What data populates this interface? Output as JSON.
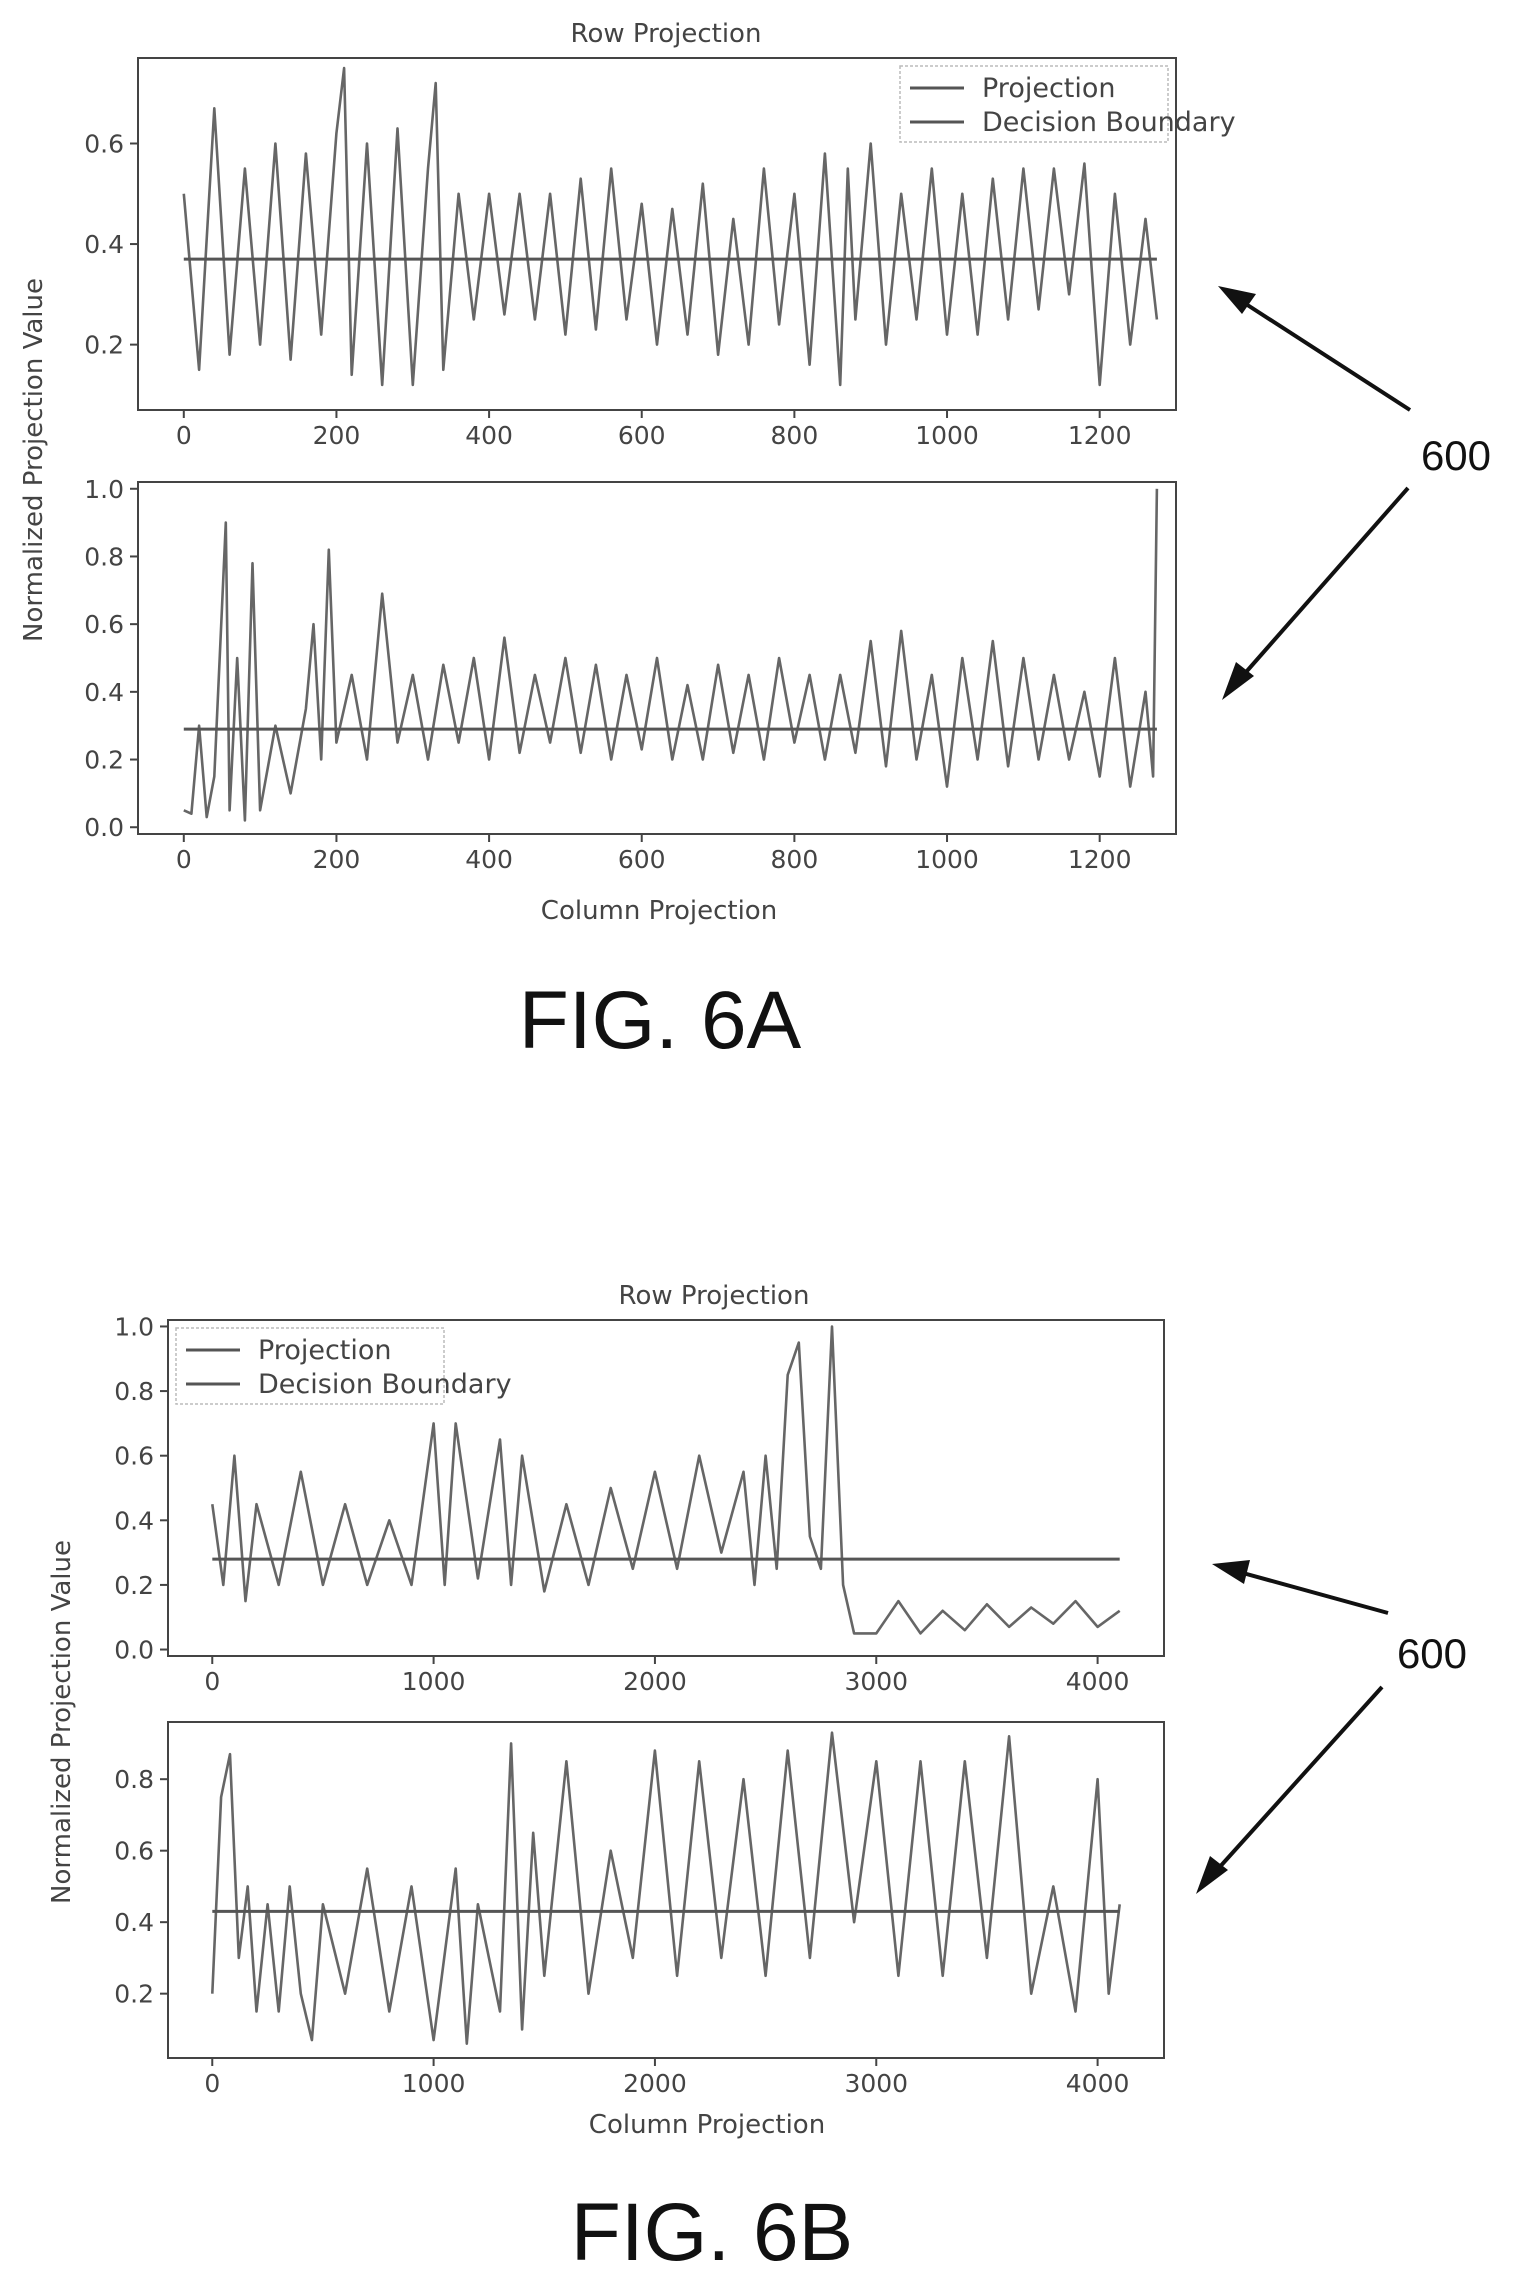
{
  "fig6a": {
    "caption": "FIG. 6A",
    "ref_label": "600",
    "ylabel": "Normalized Projection Value",
    "xlabel": "Column Projection"
  },
  "fig6b": {
    "caption": "FIG. 6B",
    "ref_label": "600",
    "ylabel": "Normalized Projection Value",
    "xlabel": "Column Projection"
  },
  "colors": {
    "line": "#666666",
    "frame": "#444444",
    "text": "#444444"
  },
  "chart_data": [
    {
      "type": "line",
      "figure": "FIG. 6A",
      "panel": "top",
      "title": "Row  Projection",
      "xlabel": "",
      "ylabel": "Normalized Projection Value",
      "xlim": [
        -60,
        1300
      ],
      "ylim": [
        0.07,
        0.77
      ],
      "xticks": [
        0,
        200,
        400,
        600,
        800,
        1000,
        1200
      ],
      "yticks": [
        0.2,
        0.4,
        0.6
      ],
      "legend": {
        "placement": "top-right",
        "entries": [
          "Projection",
          "Decision Boundary"
        ]
      },
      "grid": false,
      "series": [
        {
          "name": "Projection",
          "x": [
            0,
            20,
            40,
            60,
            80,
            100,
            120,
            140,
            160,
            180,
            200,
            210,
            220,
            240,
            260,
            280,
            300,
            320,
            330,
            340,
            360,
            380,
            400,
            420,
            440,
            460,
            480,
            500,
            520,
            540,
            560,
            580,
            600,
            620,
            640,
            660,
            680,
            700,
            720,
            740,
            760,
            780,
            800,
            820,
            840,
            860,
            870,
            880,
            900,
            920,
            940,
            960,
            980,
            1000,
            1020,
            1040,
            1060,
            1080,
            1100,
            1120,
            1140,
            1160,
            1180,
            1200,
            1220,
            1240,
            1260,
            1275
          ],
          "y": [
            0.5,
            0.15,
            0.67,
            0.18,
            0.55,
            0.2,
            0.6,
            0.17,
            0.58,
            0.22,
            0.62,
            0.75,
            0.14,
            0.6,
            0.12,
            0.63,
            0.12,
            0.55,
            0.72,
            0.15,
            0.5,
            0.25,
            0.5,
            0.26,
            0.5,
            0.25,
            0.5,
            0.22,
            0.53,
            0.23,
            0.55,
            0.25,
            0.48,
            0.2,
            0.47,
            0.22,
            0.52,
            0.18,
            0.45,
            0.2,
            0.55,
            0.24,
            0.5,
            0.16,
            0.58,
            0.12,
            0.55,
            0.25,
            0.6,
            0.2,
            0.5,
            0.25,
            0.55,
            0.22,
            0.5,
            0.22,
            0.53,
            0.25,
            0.55,
            0.27,
            0.55,
            0.3,
            0.56,
            0.12,
            0.5,
            0.2,
            0.45,
            0.25
          ]
        },
        {
          "name": "Decision Boundary",
          "x": [
            0,
            1275
          ],
          "y": [
            0.37,
            0.37
          ]
        }
      ]
    },
    {
      "type": "line",
      "figure": "FIG. 6A",
      "panel": "bottom",
      "title": "",
      "xlabel": "Column Projection",
      "ylabel": "",
      "xlim": [
        -60,
        1300
      ],
      "ylim": [
        -0.02,
        1.02
      ],
      "xticks": [
        0,
        200,
        400,
        600,
        800,
        1000,
        1200
      ],
      "yticks": [
        0.0,
        0.2,
        0.4,
        0.6,
        0.8,
        1.0
      ],
      "grid": false,
      "series": [
        {
          "name": "Projection",
          "x": [
            0,
            10,
            20,
            30,
            40,
            50,
            55,
            60,
            70,
            80,
            90,
            100,
            120,
            140,
            160,
            170,
            180,
            190,
            200,
            220,
            240,
            260,
            280,
            300,
            320,
            340,
            360,
            380,
            400,
            420,
            440,
            460,
            480,
            500,
            520,
            540,
            560,
            580,
            600,
            620,
            640,
            660,
            680,
            700,
            720,
            740,
            760,
            780,
            800,
            820,
            840,
            860,
            880,
            900,
            920,
            940,
            960,
            980,
            1000,
            1020,
            1040,
            1060,
            1080,
            1100,
            1120,
            1140,
            1160,
            1180,
            1200,
            1220,
            1240,
            1260,
            1270,
            1275
          ],
          "y": [
            0.05,
            0.04,
            0.3,
            0.03,
            0.15,
            0.65,
            0.9,
            0.05,
            0.5,
            0.02,
            0.78,
            0.05,
            0.3,
            0.1,
            0.35,
            0.6,
            0.2,
            0.82,
            0.25,
            0.45,
            0.2,
            0.69,
            0.25,
            0.45,
            0.2,
            0.48,
            0.25,
            0.5,
            0.2,
            0.56,
            0.22,
            0.45,
            0.25,
            0.5,
            0.22,
            0.48,
            0.2,
            0.45,
            0.23,
            0.5,
            0.2,
            0.42,
            0.2,
            0.48,
            0.22,
            0.45,
            0.2,
            0.5,
            0.25,
            0.45,
            0.2,
            0.45,
            0.22,
            0.55,
            0.18,
            0.58,
            0.2,
            0.45,
            0.12,
            0.5,
            0.2,
            0.55,
            0.18,
            0.5,
            0.2,
            0.45,
            0.2,
            0.4,
            0.15,
            0.5,
            0.12,
            0.4,
            0.15,
            1.0
          ]
        },
        {
          "name": "Decision Boundary",
          "x": [
            0,
            1275
          ],
          "y": [
            0.29,
            0.29
          ]
        }
      ]
    },
    {
      "type": "line",
      "figure": "FIG. 6B",
      "panel": "top",
      "title": "Row  Projection",
      "xlabel": "",
      "ylabel": "Normalized Projection Value",
      "xlim": [
        -200,
        4300
      ],
      "ylim": [
        -0.02,
        1.02
      ],
      "xticks": [
        0,
        1000,
        2000,
        3000,
        4000
      ],
      "yticks": [
        0.0,
        0.2,
        0.4,
        0.6,
        0.8,
        1.0
      ],
      "legend": {
        "placement": "top-left",
        "entries": [
          "Projection",
          "Decision Boundary"
        ]
      },
      "grid": false,
      "series": [
        {
          "name": "Projection",
          "x": [
            0,
            50,
            100,
            150,
            200,
            300,
            400,
            500,
            600,
            700,
            800,
            900,
            1000,
            1050,
            1100,
            1200,
            1300,
            1350,
            1400,
            1500,
            1600,
            1700,
            1800,
            1900,
            2000,
            2100,
            2200,
            2300,
            2400,
            2450,
            2500,
            2550,
            2600,
            2650,
            2700,
            2750,
            2800,
            2850,
            2900,
            3000,
            3100,
            3200,
            3300,
            3400,
            3500,
            3600,
            3700,
            3800,
            3900,
            4000,
            4100
          ],
          "y": [
            0.45,
            0.2,
            0.6,
            0.15,
            0.45,
            0.2,
            0.55,
            0.2,
            0.45,
            0.2,
            0.4,
            0.2,
            0.7,
            0.2,
            0.7,
            0.22,
            0.65,
            0.2,
            0.6,
            0.18,
            0.45,
            0.2,
            0.5,
            0.25,
            0.55,
            0.25,
            0.6,
            0.3,
            0.55,
            0.2,
            0.6,
            0.25,
            0.85,
            0.95,
            0.35,
            0.25,
            1.0,
            0.2,
            0.05,
            0.05,
            0.15,
            0.05,
            0.12,
            0.06,
            0.14,
            0.07,
            0.13,
            0.08,
            0.15,
            0.07,
            0.12
          ]
        },
        {
          "name": "Decision Boundary",
          "x": [
            0,
            4100
          ],
          "y": [
            0.28,
            0.28
          ]
        }
      ]
    },
    {
      "type": "line",
      "figure": "FIG. 6B",
      "panel": "bottom",
      "title": "",
      "xlabel": "Column Projection",
      "ylabel": "",
      "xlim": [
        -200,
        4300
      ],
      "ylim": [
        0.02,
        0.96
      ],
      "xticks": [
        0,
        1000,
        2000,
        3000,
        4000
      ],
      "yticks": [
        0.2,
        0.4,
        0.6,
        0.8
      ],
      "grid": false,
      "series": [
        {
          "name": "Projection",
          "x": [
            0,
            40,
            80,
            120,
            160,
            200,
            250,
            300,
            350,
            400,
            450,
            500,
            600,
            700,
            800,
            900,
            1000,
            1100,
            1150,
            1200,
            1300,
            1350,
            1400,
            1450,
            1500,
            1600,
            1700,
            1800,
            1900,
            2000,
            2100,
            2200,
            2300,
            2400,
            2500,
            2600,
            2700,
            2800,
            2900,
            3000,
            3100,
            3200,
            3300,
            3400,
            3500,
            3600,
            3700,
            3800,
            3900,
            4000,
            4050,
            4100
          ],
          "y": [
            0.2,
            0.75,
            0.87,
            0.3,
            0.5,
            0.15,
            0.45,
            0.15,
            0.5,
            0.2,
            0.07,
            0.45,
            0.2,
            0.55,
            0.15,
            0.5,
            0.07,
            0.55,
            0.06,
            0.45,
            0.15,
            0.9,
            0.1,
            0.65,
            0.25,
            0.85,
            0.2,
            0.6,
            0.3,
            0.88,
            0.25,
            0.85,
            0.3,
            0.8,
            0.25,
            0.88,
            0.3,
            0.93,
            0.4,
            0.85,
            0.25,
            0.85,
            0.25,
            0.85,
            0.3,
            0.92,
            0.2,
            0.5,
            0.15,
            0.8,
            0.2,
            0.45
          ]
        },
        {
          "name": "Decision Boundary",
          "x": [
            0,
            4100
          ],
          "y": [
            0.43,
            0.43
          ]
        }
      ]
    }
  ]
}
